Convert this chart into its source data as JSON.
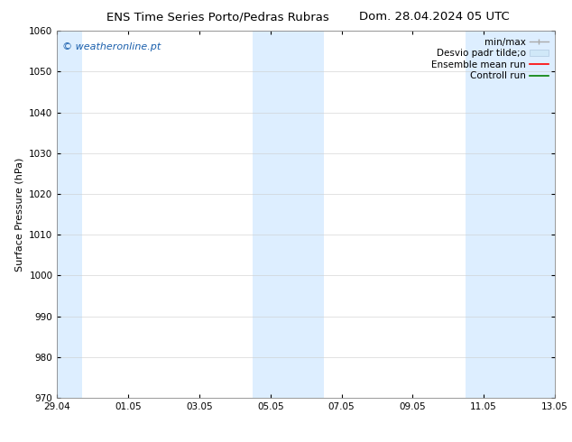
{
  "title_left": "ENS Time Series Porto/Pedras Rubras",
  "title_right": "Dom. 28.04.2024 05 UTC",
  "ylabel": "Surface Pressure (hPa)",
  "ylim": [
    970,
    1060
  ],
  "yticks": [
    970,
    980,
    990,
    1000,
    1010,
    1020,
    1030,
    1040,
    1050,
    1060
  ],
  "x_tick_labels": [
    "29.04",
    "01.05",
    "03.05",
    "05.05",
    "07.05",
    "09.05",
    "11.05",
    "13.05"
  ],
  "x_tick_positions": [
    0,
    2,
    4,
    6,
    8,
    10,
    12,
    14
  ],
  "x_min": 0,
  "x_max": 14,
  "bg_color": "#ffffff",
  "plot_bg_color": "#ffffff",
  "shaded_regions": [
    {
      "x_start": -0.2,
      "x_end": 0.7
    },
    {
      "x_start": 5.5,
      "x_end": 7.5
    },
    {
      "x_start": 11.5,
      "x_end": 14.2
    }
  ],
  "shaded_color": "#ddeeff",
  "watermark_text": "© weatheronline.pt",
  "watermark_color": "#1a5fac",
  "legend_labels": [
    "min/max",
    "Desvio padr tilde;o",
    "Ensemble mean run",
    "Controll run"
  ],
  "title_fontsize": 9.5,
  "axis_label_fontsize": 8,
  "tick_fontsize": 7.5,
  "legend_fontsize": 7.5
}
